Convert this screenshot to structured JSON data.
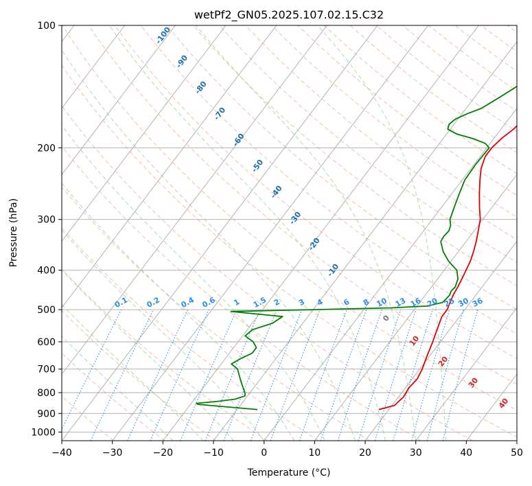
{
  "chart_data": {
    "type": "line",
    "title": "wetPf2_GN05.2025.107.02.15.C32",
    "xlabel": "Temperature (°C)",
    "ylabel": "Pressure (hPa)",
    "xlim": [
      -40,
      50
    ],
    "ylim_pressure": [
      1050,
      100
    ],
    "y_scale": "log",
    "x_ticks": [
      -40,
      -30,
      -20,
      -10,
      0,
      10,
      20,
      30,
      40,
      50
    ],
    "y_ticks": [
      100,
      200,
      300,
      400,
      500,
      600,
      700,
      800,
      900,
      1000
    ],
    "grid": true,
    "colors": {
      "temperature": "#e00000",
      "dewpoint": "#008000",
      "isotherm": "#aaaaaa",
      "dry_adiabat": "#f4a58a",
      "moist_adiabat": "#8fcf8f",
      "mixing_ratio": "#2c8ee8",
      "isotherm_label": "#1f6fb0",
      "warm_label": "#d62728",
      "zero_label": "#777777"
    },
    "series": [
      {
        "key": "temperature",
        "pressure": [
          880,
          860,
          820,
          780,
          740,
          700,
          650,
          600,
          560,
          520,
          500,
          480,
          460,
          440,
          420,
          400,
          380,
          360,
          340,
          320,
          300,
          280,
          260,
          240,
          225,
          210,
          200,
          190,
          180,
          170,
          160,
          150,
          140,
          130,
          120,
          115,
          110,
          105,
          100
        ],
        "temperature": [
          18,
          20.5,
          21,
          20.7,
          21,
          20.5,
          19.5,
          18.5,
          17.5,
          16.5,
          16.5,
          16,
          15.5,
          15.2,
          14.8,
          14.3,
          13.8,
          13,
          12,
          10.8,
          9.5,
          7.5,
          5.5,
          3.5,
          2,
          1,
          1,
          1.5,
          2.5,
          3,
          3.5,
          3.8,
          4.2,
          4.5,
          4.8,
          5,
          5.5,
          6.5,
          8.5
        ]
      },
      {
        "key": "dewpoint",
        "pressure": [
          880,
          870,
          860,
          855,
          850,
          845,
          840,
          830,
          815,
          800,
          780,
          760,
          740,
          720,
          700,
          680,
          660,
          640,
          620,
          600,
          580,
          560,
          540,
          520,
          505,
          500,
          495,
          490,
          480,
          470,
          460,
          450,
          440,
          420,
          400,
          380,
          360,
          340,
          330,
          320,
          310,
          300,
          280,
          260,
          240,
          220,
          200,
          195,
          190,
          185,
          180,
          175,
          170,
          165,
          160,
          150,
          140,
          130,
          120,
          110,
          100
        ],
        "temperature": [
          -6,
          -11,
          -16,
          -18.5,
          -19,
          -17,
          -15,
          -12,
          -10.5,
          -11,
          -12,
          -13,
          -14,
          -15,
          -16,
          -18,
          -17,
          -15.5,
          -15.5,
          -17,
          -19.5,
          -19,
          -16,
          -15,
          -26,
          -10,
          5,
          12,
          14.5,
          14.7,
          14.8,
          14.5,
          14.7,
          14,
          12.5,
          9.5,
          7,
          5,
          4.8,
          5,
          4.5,
          3.5,
          2.5,
          1.5,
          0.5,
          0.3,
          0.5,
          -1,
          -4,
          -8,
          -10.5,
          -11,
          -10.5,
          -9,
          -7,
          -5,
          -3,
          -1.5,
          0,
          1.5,
          3
        ]
      }
    ],
    "isotherm_labels": [
      "-100",
      "-90",
      "-80",
      "-70",
      "-60",
      "-50",
      "-40",
      "-30",
      "-20",
      "-10"
    ],
    "mixing_ratio_labels": [
      "0.1",
      "0.2",
      "0.4",
      "0.6",
      "1",
      "1.5",
      "2",
      "3",
      "4",
      "6",
      "8",
      "10",
      "13",
      "16",
      "20",
      "25",
      "30",
      "36"
    ],
    "warm_isotherm_labels": [
      "0",
      "10",
      "20",
      "30",
      "40"
    ]
  }
}
